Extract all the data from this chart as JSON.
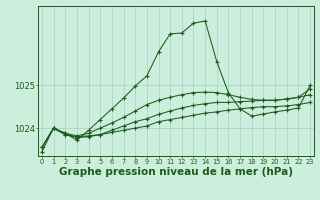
{
  "title": "Graphe pression niveau de la mer (hPa)",
  "background_color": "#cceedd",
  "grid_color": "#aacccc",
  "line_color": "#1a5c1a",
  "hours": [
    0,
    1,
    2,
    3,
    4,
    5,
    6,
    7,
    8,
    9,
    10,
    11,
    12,
    13,
    14,
    15,
    16,
    17,
    18,
    19,
    20,
    21,
    22,
    23
  ],
  "series": [
    [
      1023.55,
      1024.0,
      1023.85,
      1023.8,
      1023.82,
      1023.85,
      1023.9,
      1023.95,
      1024.0,
      1024.05,
      1024.15,
      1024.2,
      1024.25,
      1024.3,
      1024.35,
      1024.38,
      1024.42,
      1024.45,
      1024.48,
      1024.5,
      1024.5,
      1024.52,
      1024.55,
      1024.6
    ],
    [
      1023.55,
      1024.0,
      1023.85,
      1023.78,
      1023.8,
      1023.85,
      1023.95,
      1024.05,
      1024.15,
      1024.22,
      1024.32,
      1024.4,
      1024.47,
      1024.53,
      1024.57,
      1024.6,
      1024.6,
      1024.62,
      1024.63,
      1024.65,
      1024.65,
      1024.68,
      1024.72,
      1024.78
    ],
    [
      1023.55,
      1024.0,
      1023.88,
      1023.82,
      1023.88,
      1024.0,
      1024.12,
      1024.25,
      1024.4,
      1024.55,
      1024.65,
      1024.72,
      1024.78,
      1024.83,
      1024.84,
      1024.83,
      1024.78,
      1024.72,
      1024.67,
      1024.65,
      1024.65,
      1024.68,
      1024.72,
      1024.92
    ],
    [
      1023.45,
      1024.0,
      1023.88,
      1023.72,
      1023.95,
      1024.2,
      1024.45,
      1024.7,
      1024.98,
      1025.22,
      1025.78,
      1026.2,
      1026.22,
      1026.45,
      1026.5,
      1025.55,
      1024.82,
      1024.45,
      1024.28,
      1024.33,
      1024.38,
      1024.42,
      1024.47,
      1025.0
    ]
  ],
  "yticks": [
    1024,
    1025
  ],
  "ylim": [
    1023.35,
    1026.85
  ],
  "xlim": [
    -0.3,
    23.3
  ],
  "title_fontsize": 7.5
}
